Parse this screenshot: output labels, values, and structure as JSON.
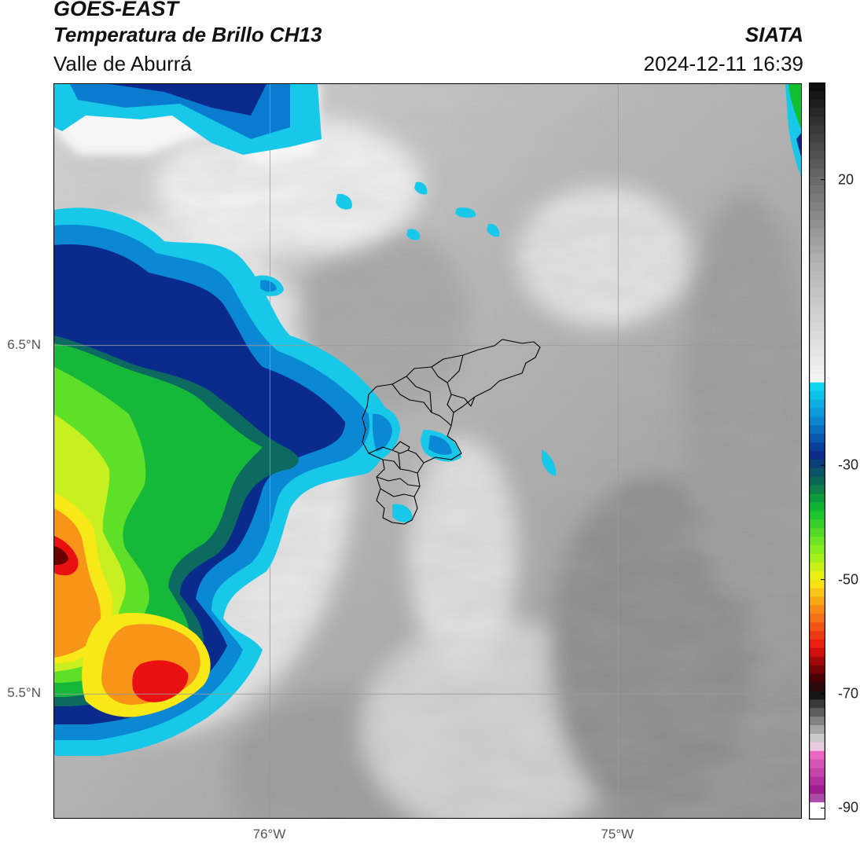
{
  "header": {
    "satellite": "GOES-EAST",
    "product": "Temperatura de Brillo CH13",
    "region": "Valle de Aburrá",
    "organization": "SIATA",
    "datetime": "2024-12-11 16:39"
  },
  "map": {
    "lat_labels": [
      {
        "text": "6.5°N",
        "value": 6.5
      },
      {
        "text": "5.5°N",
        "value": 5.5
      }
    ],
    "lon_labels": [
      {
        "text": "76°W",
        "value": -76.0
      },
      {
        "text": "75°W",
        "value": -75.0
      }
    ],
    "extent": {
      "lon_min": -76.62,
      "lon_max": -74.47,
      "lat_min": 5.14,
      "lat_max": 7.25
    },
    "colors": {
      "grid": "#9a9a9a",
      "boundary": "#000000",
      "frame": "#000000"
    }
  },
  "colorbar": {
    "tick_labels": [
      {
        "text": "20",
        "value": 20
      },
      {
        "text": "-30",
        "value": -30
      },
      {
        "text": "-50",
        "value": -50
      },
      {
        "text": "-70",
        "value": -70
      },
      {
        "text": "-90",
        "value": -90
      }
    ],
    "range": [
      -92,
      37
    ],
    "stops": [
      {
        "value": 37,
        "color": "#0a0a0a"
      },
      {
        "value": 20,
        "color": "#6a6a6a"
      },
      {
        "value": 5,
        "color": "#b4b4b4"
      },
      {
        "value": -15,
        "color": "#f4f4f4"
      },
      {
        "value": -16,
        "color": "#10d8f0"
      },
      {
        "value": -22,
        "color": "#0a8ad4"
      },
      {
        "value": -28,
        "color": "#0a2a8c"
      },
      {
        "value": -33,
        "color": "#0a6a50"
      },
      {
        "value": -38,
        "color": "#10c030"
      },
      {
        "value": -45,
        "color": "#8cf020"
      },
      {
        "value": -50,
        "color": "#f8f010"
      },
      {
        "value": -55,
        "color": "#f89018"
      },
      {
        "value": -62,
        "color": "#e81010"
      },
      {
        "value": -67,
        "color": "#500000"
      },
      {
        "value": -70,
        "color": "#101010"
      },
      {
        "value": -74,
        "color": "#707070"
      },
      {
        "value": -79,
        "color": "#e8e8e8"
      },
      {
        "value": -80,
        "color": "#f070c8"
      },
      {
        "value": -88,
        "color": "#901088"
      },
      {
        "value": -89,
        "color": "#ffffff"
      }
    ]
  }
}
